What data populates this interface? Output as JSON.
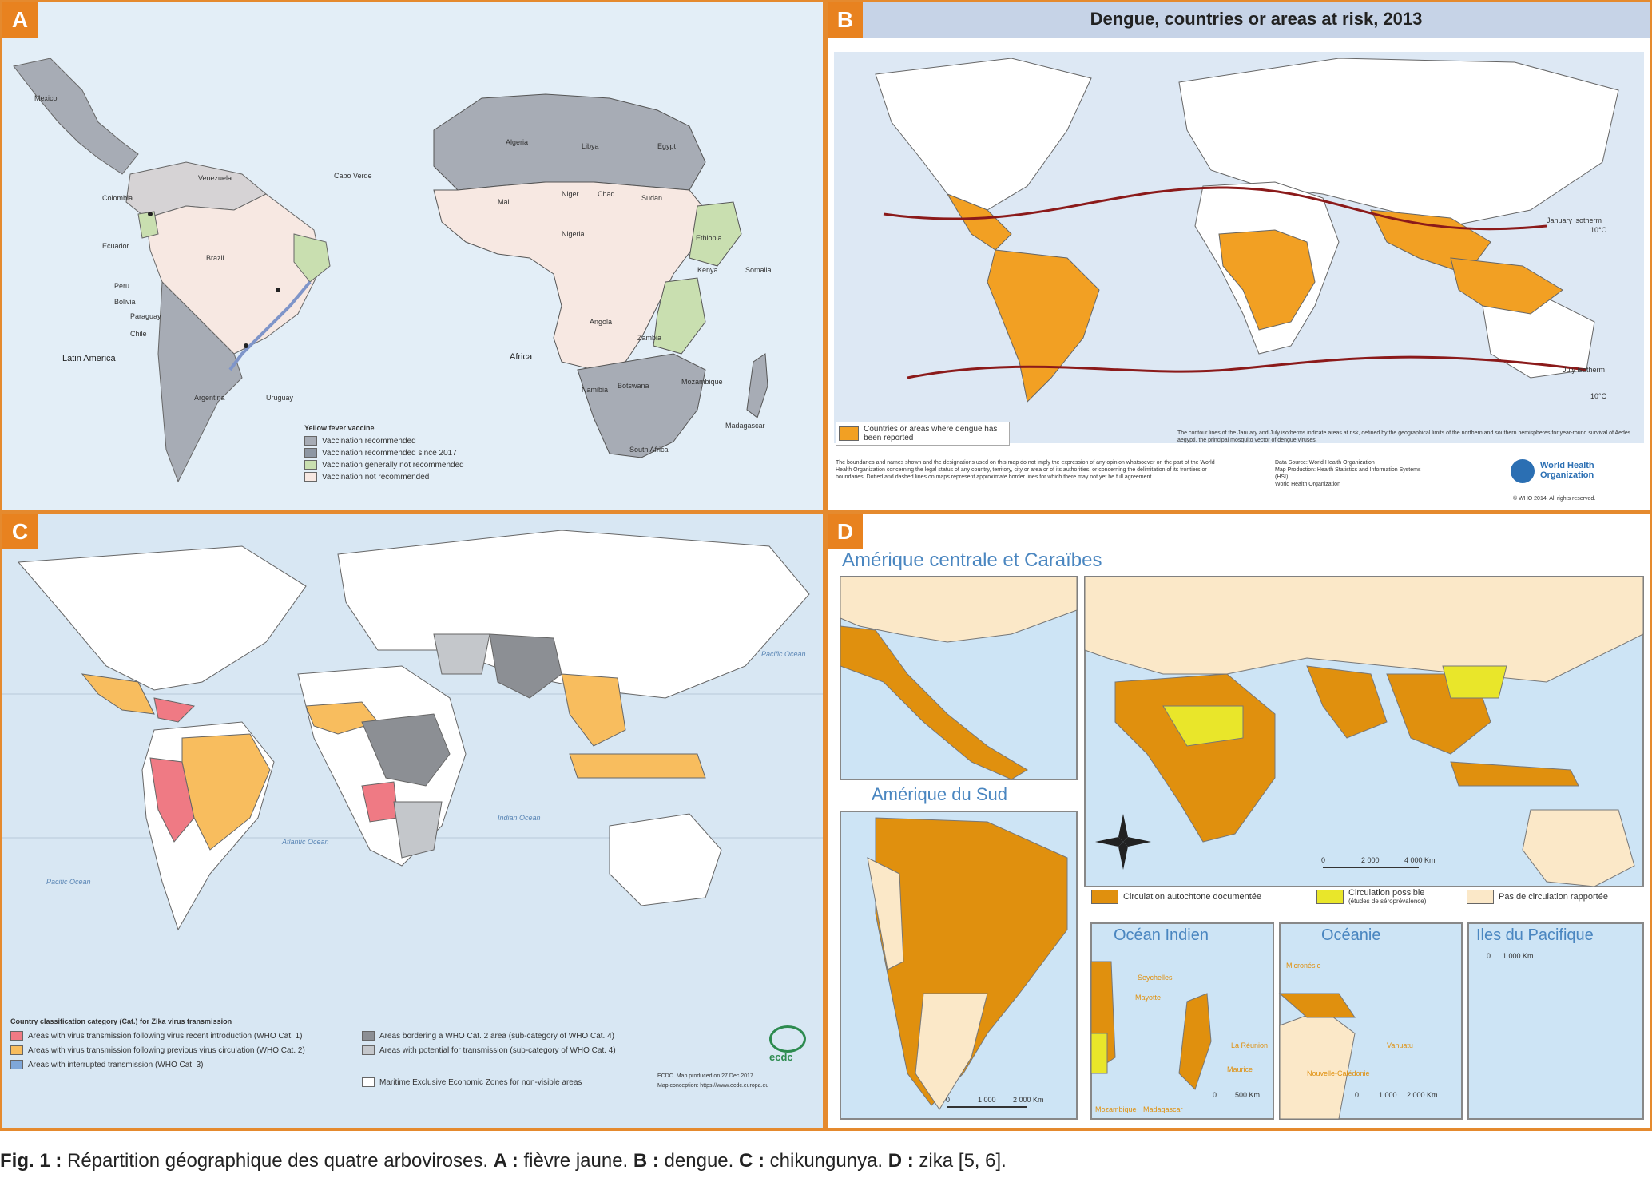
{
  "colors": {
    "frame": "#e58a2e",
    "ocean": "#dfeaf4",
    "land_light": "#f7e8e2",
    "land_grey": "#a7acb5",
    "land_green": "#c9dfb0",
    "dengue_orange": "#f2a023",
    "zika_orange": "#e0900e",
    "zika_yellow": "#e9e62a",
    "zika_none": "#fbe8c8",
    "chik_red": "#ef7a84",
    "chik_orange": "#f8bd5e",
    "chik_dark": "#8c8f94",
    "chik_grey": "#c4c7cb",
    "curve": "#8b1a1a"
  },
  "panels": {
    "a": {
      "tag": "A",
      "region_left": "Latin America",
      "region_right": "Africa",
      "legend_title": "Yellow fever vaccine",
      "legend": [
        {
          "label": "Vaccination recommended",
          "color": "#a7acb5"
        },
        {
          "label": "Vaccination recommended since 2017",
          "color": "#8e97a3"
        },
        {
          "label": "Vaccination generally not recommended",
          "color": "#c9dfb0"
        },
        {
          "label": "Vaccination not recommended",
          "color": "#f7e8e2"
        }
      ],
      "labels": [
        "Mexico",
        "Brazil",
        "Peru",
        "Bolivia",
        "Colombia",
        "Venezuela",
        "Ecuador",
        "Paraguay",
        "Chile",
        "Argentina",
        "Uruguay",
        "Algeria",
        "Libya",
        "Egypt",
        "Mali",
        "Niger",
        "Chad",
        "Sudan",
        "Nigeria",
        "Ethiopia",
        "Kenya",
        "Angola",
        "Zambia",
        "Namibia",
        "Botswana",
        "Madagascar",
        "South Africa",
        "Mozambique",
        "Somalia",
        "Cabo Verde"
      ]
    },
    "b": {
      "tag": "B",
      "title": "Dengue, countries or areas at risk, 2013",
      "legend_label": "Countries or areas where dengue has been reported",
      "isotherm_north": "January isotherm",
      "isotherm_north_temp": "10°C",
      "isotherm_south": "July isotherm",
      "isotherm_south_temp": "10°C",
      "note_right": "The contour lines of the January and July isotherms indicate areas at risk, defined by the geographical limits of the northern and southern hemispheres for year-round survival of Aedes aegypti, the principal mosquito vector of dengue viruses.",
      "disclaimer": "The boundaries and names shown and the designations used on this map do not imply the expression of any opinion whatsoever on the part of the World Health Organization concerning the legal status of any country, territory, city or area or of its authorities, or concerning the delimitation of its frontiers or boundaries. Dotted and dashed lines on maps represent approximate border lines for which there may not yet be full agreement.",
      "source": "Data Source: World Health Organization\nMap Production: Health Statistics and Information Systems (HSI)\nWorld Health Organization",
      "org": "World Health Organization",
      "copyright": "© WHO 2014. All rights reserved."
    },
    "c": {
      "tag": "C",
      "legend_title": "Country classification category (Cat.) for Zika virus transmission",
      "legend": [
        {
          "label": "Areas with virus transmission following virus recent introduction (WHO Cat. 1)",
          "color": "#ef7a84"
        },
        {
          "label": "Areas with virus transmission following previous virus circulation (WHO Cat. 2)",
          "color": "#f8bd5e"
        },
        {
          "label": "Areas with interrupted transmission (WHO Cat. 3)",
          "color": "#7fa7d8"
        },
        {
          "label": "Areas bordering a WHO Cat. 2 area (sub-category of WHO Cat. 4)",
          "color": "#8c8f94"
        },
        {
          "label": "Areas with potential for transmission (sub-category of WHO Cat. 4)",
          "color": "#c4c7cb"
        },
        {
          "label": "Maritime Exclusive Economic Zones for non-visible areas",
          "color": "#ffffff"
        }
      ],
      "oceans": [
        "Pacific Ocean",
        "Atlantic Ocean",
        "Indian Ocean",
        "Pacific Ocean"
      ],
      "credit": "ECDC. Map produced on 27 Dec 2017.",
      "credit2": "Map conception: https://www.ecdc.europa.eu",
      "logo": "ecdc"
    },
    "d": {
      "tag": "D",
      "title_central": "Amérique centrale et Caraïbes",
      "title_south": "Amérique du Sud",
      "title_indian": "Océan Indien",
      "title_oceania": "Océanie",
      "title_pacific": "Iles du Pacifique",
      "legend": [
        {
          "label": "Circulation autochtone documentée",
          "color": "#e0900e"
        },
        {
          "label": "Circulation possible",
          "sub": "(études de séroprévalence)",
          "color": "#e9e62a"
        },
        {
          "label": "Pas de circulation rapportée",
          "color": "#fbe8c8"
        }
      ],
      "scale_world": [
        "0",
        "2 000",
        "4 000 Km"
      ],
      "scale_south": [
        "0",
        "1 000",
        "2 000 Km"
      ],
      "scale_indian": [
        "0",
        "500 Km"
      ],
      "scale_oceania": [
        "0",
        "1 000",
        "2 000 Km"
      ],
      "scale_pacific": [
        "0",
        "1 000 Km"
      ],
      "indian_labels": [
        "Seychelles",
        "Mayotte",
        "La Réunion",
        "Maurice",
        "Madagascar",
        "Mozambique"
      ],
      "oceania_labels": [
        "Micronésie",
        "Nouvelle-Calédonie",
        "Vanuatu"
      ]
    }
  },
  "caption": {
    "fig": "Fig. 1 :",
    "text1": " Répartition géographique des quatre arboviroses. ",
    "a": "A :",
    "t_a": " fièvre jaune. ",
    "b": "B :",
    "t_b": " dengue. ",
    "c": "C :",
    "t_c": " chikungunya. ",
    "d": "D :",
    "t_d": " zika [5, 6]."
  }
}
